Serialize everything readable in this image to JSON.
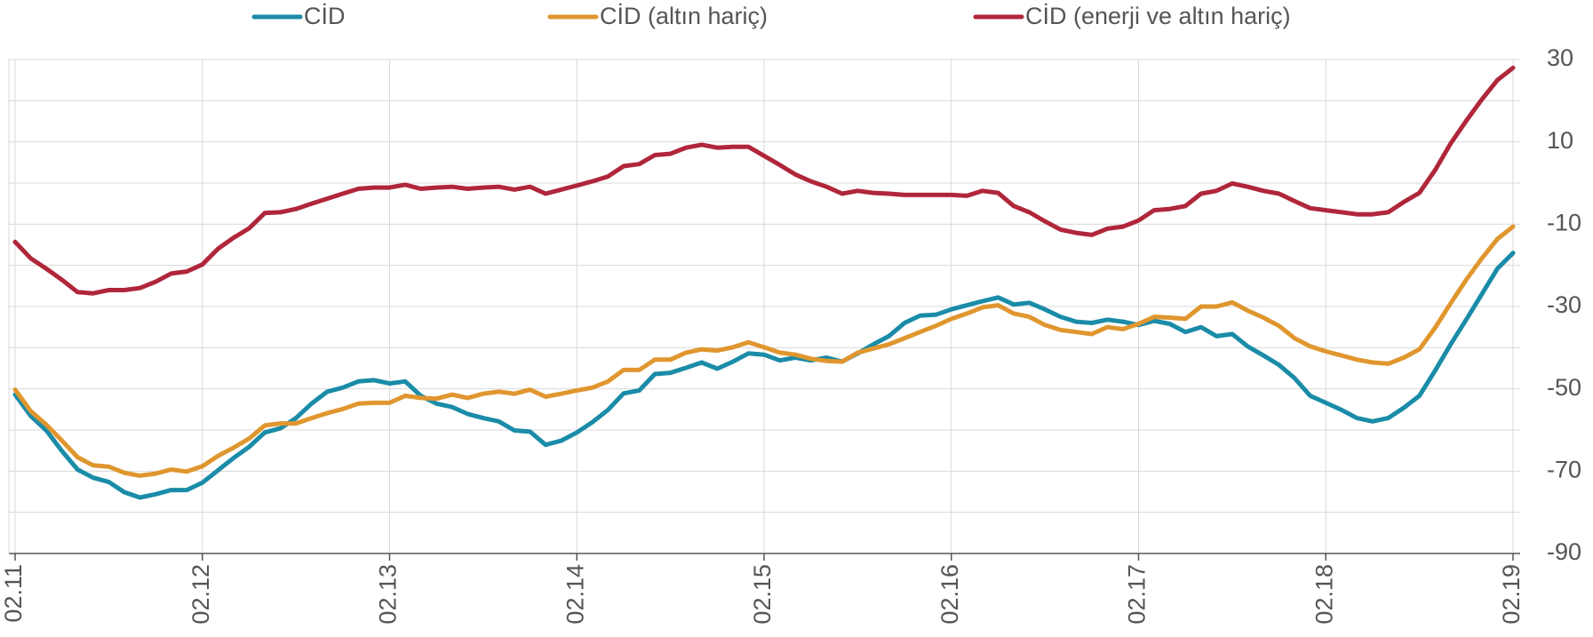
{
  "chart_data": {
    "type": "line",
    "categories": [
      "02.11",
      null,
      null,
      null,
      null,
      null,
      null,
      null,
      null,
      null,
      null,
      null,
      "02.12",
      null,
      null,
      null,
      null,
      null,
      null,
      null,
      null,
      null,
      null,
      null,
      "02.13",
      null,
      null,
      null,
      null,
      null,
      null,
      null,
      null,
      null,
      null,
      null,
      "02.14",
      null,
      null,
      null,
      null,
      null,
      null,
      null,
      null,
      null,
      null,
      null,
      "02.15",
      null,
      null,
      null,
      null,
      null,
      null,
      null,
      null,
      null,
      null,
      null,
      "02.16",
      null,
      null,
      null,
      null,
      null,
      null,
      null,
      null,
      null,
      null,
      null,
      "02.17",
      null,
      null,
      null,
      null,
      null,
      null,
      null,
      null,
      null,
      null,
      null,
      "02.18",
      null,
      null,
      null,
      null,
      null,
      null,
      null,
      null,
      null,
      null,
      null,
      "02.19"
    ],
    "series": [
      {
        "name": "CİD",
        "color": "#1a8ca8",
        "values": [
          -51.4,
          -56.6,
          -60.1,
          -65.1,
          -69.6,
          -71.6,
          -72.6,
          -75.1,
          -76.4,
          -75.6,
          -74.6,
          -74.6,
          -72.8,
          -69.8,
          -66.8,
          -64.1,
          -60.6,
          -59.6,
          -57.1,
          -53.6,
          -50.7,
          -49.7,
          -48.2,
          -47.9,
          -48.7,
          -48.2,
          -51.7,
          -53.6,
          -54.4,
          -56.1,
          -57.1,
          -57.9,
          -60.1,
          -60.4,
          -63.6,
          -62.6,
          -60.6,
          -58.1,
          -55.1,
          -51.1,
          -50.4,
          -46.4,
          -46.1,
          -44.9,
          -43.6,
          -45.1,
          -43.4,
          -41.4,
          -41.7,
          -43.1,
          -42.4,
          -43.1,
          -42.4,
          -43.4,
          -41.4,
          -39.2,
          -37.2,
          -34,
          -32.2,
          -32,
          -30.7,
          -29.7,
          -28.7,
          -27.8,
          -29.5,
          -29.1,
          -30.7,
          -32.5,
          -33.7,
          -34,
          -33.2,
          -33.7,
          -34.5,
          -33.5,
          -34.2,
          -36.2,
          -35,
          -37.2,
          -36.7,
          -39.7,
          -41.9,
          -44.2,
          -47.4,
          -51.7,
          -53.4,
          -55.1,
          -57.1,
          -57.9,
          -57.1,
          -54.6,
          -51.7,
          -45.6,
          -39.2,
          -33.2,
          -27,
          -20.8,
          -17
        ]
      },
      {
        "name": "CİD (altın hariç)",
        "color": "#e0962e",
        "values": [
          -50.2,
          -55.4,
          -58.7,
          -62.6,
          -66.6,
          -68.6,
          -68.9,
          -70.4,
          -71.1,
          -70.6,
          -69.6,
          -70.1,
          -68.8,
          -66.3,
          -64.3,
          -62.1,
          -58.9,
          -58.4,
          -58.4,
          -57.1,
          -55.9,
          -54.9,
          -53.6,
          -53.4,
          -53.4,
          -51.7,
          -52.2,
          -52.4,
          -51.4,
          -52.2,
          -51.2,
          -50.7,
          -51.2,
          -50.2,
          -51.9,
          -51.2,
          -50.4,
          -49.7,
          -48.2,
          -45.4,
          -45.4,
          -42.9,
          -42.9,
          -41.2,
          -40.4,
          -40.7,
          -39.9,
          -38.7,
          -39.9,
          -41.2,
          -41.7,
          -42.7,
          -43.2,
          -43.4,
          -41.2,
          -40.2,
          -39.2,
          -37.7,
          -36.2,
          -34.7,
          -33,
          -31.7,
          -30.2,
          -29.7,
          -31.7,
          -32.5,
          -34.5,
          -35.7,
          -36.2,
          -36.7,
          -35,
          -35.5,
          -34.2,
          -32.5,
          -32.7,
          -33,
          -30,
          -30,
          -29,
          -31,
          -32.7,
          -34.7,
          -37.7,
          -39.7,
          -40.9,
          -41.9,
          -42.9,
          -43.6,
          -43.9,
          -42.4,
          -40.4,
          -35.2,
          -29.2,
          -23.5,
          -18.3,
          -13.6,
          -10.6
        ]
      },
      {
        "name": "CİD (enerji ve altın hariç)",
        "color": "#b0263a",
        "values": [
          -14.3,
          -18.3,
          -20.8,
          -23.5,
          -26.5,
          -26.8,
          -26,
          -26,
          -25.5,
          -24,
          -22,
          -21.5,
          -19.8,
          -16,
          -13.3,
          -11,
          -7.3,
          -7.1,
          -6.3,
          -5,
          -3.8,
          -2.6,
          -1.4,
          -1.1,
          -1.1,
          -0.4,
          -1.4,
          -1.1,
          -0.9,
          -1.4,
          -1.1,
          -0.9,
          -1.6,
          -0.9,
          -2.6,
          -1.6,
          -0.6,
          0.4,
          1.6,
          4.1,
          4.6,
          6.8,
          7.1,
          8.6,
          9.3,
          8.6,
          8.8,
          8.8,
          6.6,
          4.4,
          2.1,
          0.4,
          -0.9,
          -2.6,
          -1.9,
          -2.4,
          -2.6,
          -2.9,
          -2.9,
          -2.9,
          -2.9,
          -3.1,
          -1.9,
          -2.4,
          -5.6,
          -7.1,
          -9.3,
          -11.3,
          -12.1,
          -12.6,
          -11.1,
          -10.6,
          -9.1,
          -6.6,
          -6.3,
          -5.6,
          -2.6,
          -1.9,
          -0.1,
          -0.9,
          -1.9,
          -2.6,
          -4.4,
          -6.1,
          -6.6,
          -7.1,
          -7.6,
          -7.6,
          -7.1,
          -4.6,
          -2.4,
          3.1,
          9.6,
          15.1,
          20.3,
          25,
          28
        ]
      }
    ],
    "ylim": [
      -90,
      30
    ],
    "yticks": [
      30,
      10,
      -10,
      -30,
      -50,
      -70,
      -90
    ],
    "y_axis_side": "right",
    "grid": true,
    "legend": "top"
  }
}
